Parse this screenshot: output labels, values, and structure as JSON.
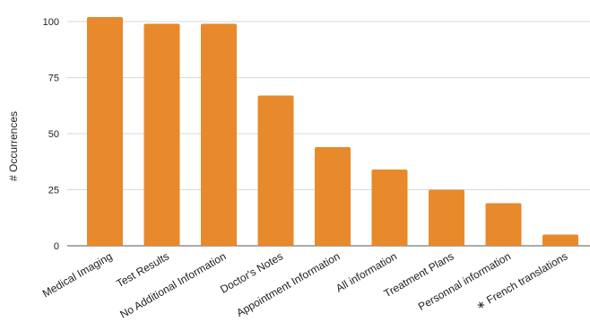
{
  "chart_data": {
    "type": "bar",
    "title": "",
    "xlabel": "",
    "ylabel": "# Occurrences",
    "ylim": [
      0,
      100
    ],
    "yticks": [
      0,
      25,
      50,
      75,
      100
    ],
    "grid": true,
    "bar_color": "#e8892b",
    "categories": [
      "Medical Imaging",
      "Test Results",
      "No Additional Information",
      "Doctor's Notes",
      "Appointment Information",
      "All information",
      "Treatment Plans",
      "Personnal information",
      "∗ French translations"
    ],
    "values": [
      102,
      99,
      99,
      67,
      44,
      34,
      25,
      19,
      5
    ]
  }
}
